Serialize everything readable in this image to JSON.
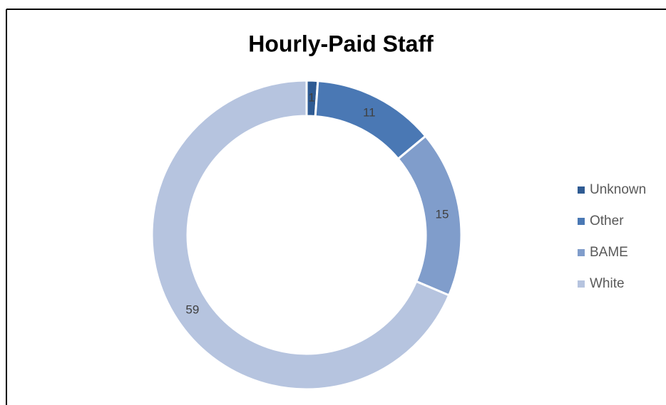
{
  "chart_data": {
    "type": "doughnut",
    "title": "Hourly-Paid Staff",
    "categories": [
      "Unknown",
      "Other",
      "BAME",
      "White"
    ],
    "values": [
      1,
      11,
      15,
      59
    ],
    "colors": [
      "#2f5b93",
      "#4a78b4",
      "#809dcb",
      "#b6c4df"
    ],
    "legend": "right"
  }
}
